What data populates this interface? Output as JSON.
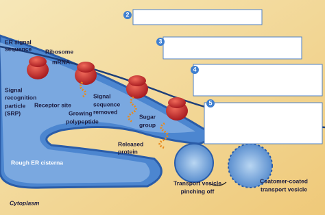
{
  "steps": [
    "2",
    "3",
    "4",
    "5"
  ],
  "labels": [
    {
      "lines": [
        "ER signal",
        "sequence"
      ]
    },
    {
      "lines": [
        "Ribosome"
      ]
    },
    {
      "lines": [
        "mRNA"
      ]
    },
    {
      "lines": [
        "Signal",
        "recognition",
        "particle",
        "(SRP)"
      ]
    },
    {
      "lines": [
        "Receptor site"
      ]
    },
    {
      "lines": [
        "Growing",
        "polypeptide"
      ]
    },
    {
      "lines": [
        "Signal",
        "sequence",
        "removed"
      ]
    },
    {
      "lines": [
        "Sugar",
        "group"
      ]
    },
    {
      "lines": [
        "Released",
        "protein"
      ]
    },
    {
      "lines": [
        "Rough ER cisterna"
      ]
    },
    {
      "lines": [
        "Cytoplasm"
      ]
    },
    {
      "lines": [
        "Transport vesicle",
        "pinching off"
      ]
    },
    {
      "lines": [
        "Coatomer-coated",
        "transport vesicle"
      ]
    }
  ]
}
